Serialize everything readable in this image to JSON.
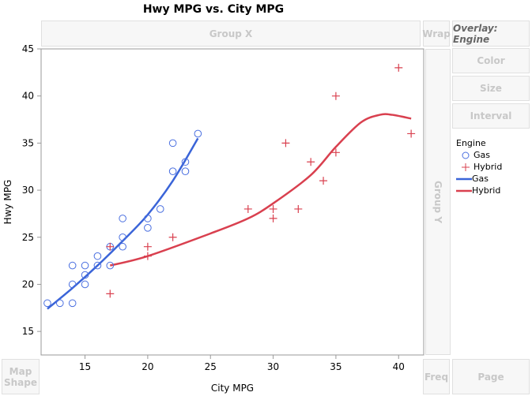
{
  "chart_data": {
    "type": "scatter",
    "title": "Hwy MPG vs. City MPG",
    "xlabel": "City MPG",
    "ylabel": "Hwy MPG",
    "xlim": [
      11.5,
      42
    ],
    "ylim": [
      12.5,
      45
    ],
    "xticks": [
      15,
      20,
      25,
      30,
      35,
      40
    ],
    "yticks": [
      15,
      20,
      25,
      30,
      35,
      40,
      45
    ],
    "grid": false,
    "legend_position": "right",
    "legend_title": "Engine",
    "series": [
      {
        "name": "Gas",
        "marker": "circle",
        "color": "#4a6fe0",
        "points": [
          [
            12,
            18
          ],
          [
            13,
            18
          ],
          [
            14,
            18
          ],
          [
            14,
            20
          ],
          [
            14,
            22
          ],
          [
            15,
            20
          ],
          [
            15,
            21
          ],
          [
            15,
            22
          ],
          [
            16,
            22
          ],
          [
            16,
            23
          ],
          [
            17,
            22
          ],
          [
            17,
            24
          ],
          [
            18,
            24
          ],
          [
            18,
            25
          ],
          [
            18,
            27
          ],
          [
            20,
            26
          ],
          [
            20,
            27
          ],
          [
            21,
            28
          ],
          [
            22,
            32
          ],
          [
            22,
            35
          ],
          [
            23,
            32
          ],
          [
            23,
            33
          ],
          [
            24,
            36
          ]
        ],
        "smoother": [
          [
            12,
            17.4
          ],
          [
            14,
            19.6
          ],
          [
            16,
            22
          ],
          [
            18,
            24.6
          ],
          [
            20,
            27.4
          ],
          [
            22,
            31
          ],
          [
            24,
            35.5
          ]
        ]
      },
      {
        "name": "Hybrid",
        "marker": "plus",
        "color": "#d9404f",
        "points": [
          [
            17,
            19
          ],
          [
            17,
            24
          ],
          [
            20,
            23
          ],
          [
            20,
            24
          ],
          [
            22,
            25
          ],
          [
            28,
            28
          ],
          [
            30,
            27
          ],
          [
            30,
            28
          ],
          [
            31,
            35
          ],
          [
            32,
            28
          ],
          [
            33,
            33
          ],
          [
            34,
            31
          ],
          [
            35,
            34
          ],
          [
            35,
            40
          ],
          [
            40,
            43
          ],
          [
            41,
            36
          ]
        ],
        "smoother": [
          [
            17,
            22
          ],
          [
            20,
            23
          ],
          [
            25,
            25.4
          ],
          [
            28,
            27
          ],
          [
            30,
            28.6
          ],
          [
            33,
            31.6
          ],
          [
            35,
            34.6
          ],
          [
            37,
            37.2
          ],
          [
            38.5,
            38
          ],
          [
            39.5,
            38
          ],
          [
            41,
            37.6
          ]
        ]
      }
    ]
  },
  "zones": {
    "group_x": "Group X",
    "wrap": "Wrap",
    "overlay": "Overlay: Engine",
    "color": "Color",
    "size": "Size",
    "interval": "Interval",
    "group_y": "Group Y",
    "map_shape": "Map Shape",
    "freq": "Freq",
    "page": "Page"
  },
  "legend": {
    "title": "Engine",
    "items": [
      "Gas",
      "Hybrid",
      "Gas",
      "Hybrid"
    ]
  }
}
